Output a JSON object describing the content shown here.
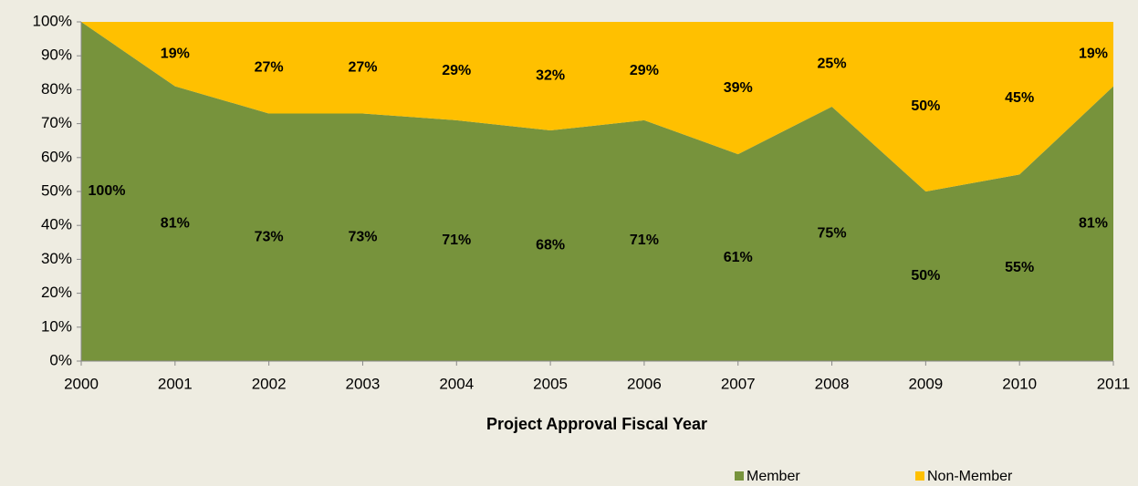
{
  "chart_data": {
    "type": "stacked_area",
    "xlabel": "Project Approval Fiscal Year",
    "x": [
      2000,
      2001,
      2002,
      2003,
      2004,
      2005,
      2006,
      2007,
      2008,
      2009,
      2010,
      2011
    ],
    "xlim": [
      2000,
      2011
    ],
    "xticks": [
      2000,
      2001,
      2002,
      2003,
      2004,
      2005,
      2006,
      2007,
      2008,
      2009,
      2010,
      2011
    ],
    "ylim": [
      0,
      100
    ],
    "yticks": [
      {
        "value": 0,
        "label": "0%"
      },
      {
        "value": 10,
        "label": "10%"
      },
      {
        "value": 20,
        "label": "20%"
      },
      {
        "value": 30,
        "label": "30%"
      },
      {
        "value": 40,
        "label": "40%"
      },
      {
        "value": 50,
        "label": "50%"
      },
      {
        "value": 60,
        "label": "60%"
      },
      {
        "value": 70,
        "label": "70%"
      },
      {
        "value": 80,
        "label": "80%"
      },
      {
        "value": 90,
        "label": "90%"
      },
      {
        "value": 100,
        "label": "100%"
      }
    ],
    "legend": "bottom-right",
    "series": [
      {
        "name": "Member",
        "color": "#77933c",
        "values": [
          100,
          81,
          73,
          73,
          71,
          68,
          71,
          61,
          75,
          50,
          55,
          81
        ],
        "value_labels": [
          "100%",
          "81%",
          "73%",
          "73%",
          "71%",
          "68%",
          "71%",
          "61%",
          "75%",
          "50%",
          "55%",
          "81%"
        ]
      },
      {
        "name": "Non-Member",
        "color": "#ffc000",
        "values": [
          0,
          19,
          27,
          27,
          29,
          32,
          29,
          39,
          25,
          50,
          45,
          19
        ],
        "value_labels": [
          null,
          "19%",
          "27%",
          "27%",
          "29%",
          "32%",
          "29%",
          "39%",
          "25%",
          "50%",
          "45%",
          "19%"
        ]
      }
    ]
  }
}
